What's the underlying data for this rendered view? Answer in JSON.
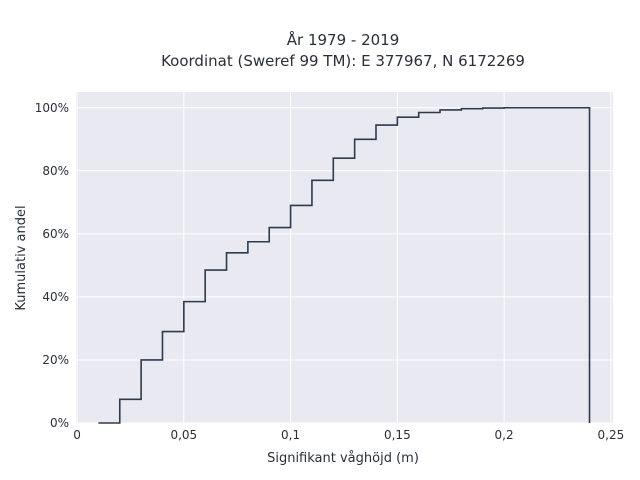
{
  "chart_data": {
    "type": "line",
    "line_shape": "step",
    "title": "År 1979 - 2019",
    "subtitle": "Koordinat (Sweref 99 TM): E 377967, N 6172269",
    "xlabel": "Signifikant våghöjd (m)",
    "ylabel": "Kumulativ andel",
    "xlim": [
      -0.0005,
      0.251
    ],
    "ylim": [
      0,
      1.05
    ],
    "x_ticks": [
      0,
      0.05,
      0.1,
      0.15,
      0.2,
      0.25
    ],
    "x_tick_labels": [
      "0",
      "0,05",
      "0,1",
      "0,15",
      "0,2",
      "0,25"
    ],
    "y_ticks": [
      0,
      0.2,
      0.4,
      0.6,
      0.8,
      1.0
    ],
    "y_tick_labels": [
      "0%",
      "20%",
      "40%",
      "60%",
      "80%",
      "100%"
    ],
    "grid": true,
    "colors": {
      "line": "#2e3a4e",
      "plot_bg": "#e9e9f1",
      "grid": "#ffffff"
    },
    "series": [
      {
        "x": [
          0.01,
          0.02,
          0.03,
          0.04,
          0.05,
          0.06,
          0.07,
          0.08,
          0.09,
          0.1,
          0.11,
          0.12,
          0.13,
          0.14,
          0.15,
          0.16,
          0.17,
          0.18,
          0.19,
          0.2,
          0.22,
          0.24
        ],
        "y": [
          0.0,
          0.075,
          0.2,
          0.29,
          0.385,
          0.485,
          0.54,
          0.575,
          0.62,
          0.69,
          0.77,
          0.84,
          0.9,
          0.945,
          0.97,
          0.985,
          0.993,
          0.997,
          0.999,
          1.0,
          1.0,
          1.0
        ],
        "end_drop": 0.0
      }
    ]
  }
}
